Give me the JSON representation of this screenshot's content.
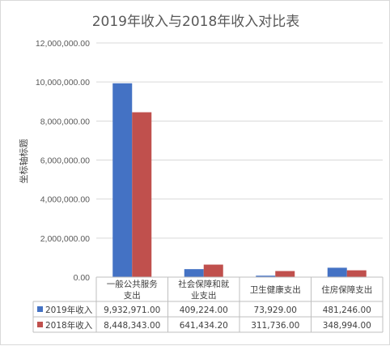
{
  "chart_data": {
    "type": "bar",
    "title": "2019年收入与2018年收入对比表",
    "xlabel": "",
    "ylabel": "坐标轴标题",
    "ylim": [
      0,
      12000000
    ],
    "yticks": [
      "0.00",
      "2,000,000.00",
      "4,000,000.00",
      "6,000,000.00",
      "8,000,000.00",
      "10,000,000.00",
      "12,000,000.00"
    ],
    "grid": true,
    "legend": "data-table",
    "categories": [
      [
        "一般公共服务",
        "支出"
      ],
      [
        "社会保障和就",
        "业支出"
      ],
      [
        "卫生健康支出"
      ],
      [
        "住房保障支出"
      ]
    ],
    "series": [
      {
        "name": "2019年收入",
        "color": "#4472c4",
        "values": [
          9932971.0,
          409224.0,
          73929.0,
          481246.0
        ],
        "labels": [
          "9,932,971.00",
          "409,224.00",
          "73,929.00",
          "481,246.00"
        ]
      },
      {
        "name": "2018年收入",
        "color": "#c0504d",
        "values": [
          8448343.0,
          641434.2,
          311736.0,
          348994.0
        ],
        "labels": [
          "8,448,343.00",
          "641,434.20",
          "311,736.00",
          "348,994.00"
        ]
      }
    ]
  }
}
